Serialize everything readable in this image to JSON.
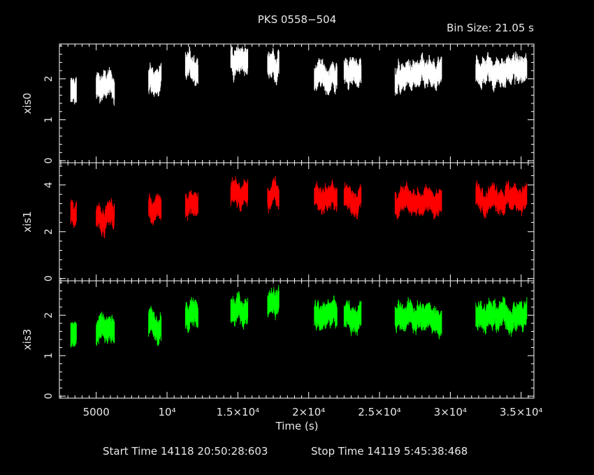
{
  "title": "PKS 0558−504",
  "bin_size": "Bin Size: 21.05 s",
  "start_time": "Start Time 14118 20:50:28:603",
  "stop_time": "Stop Time 14119  5:45:38:468",
  "colors": {
    "background": "#000000",
    "axes": "#ffffff",
    "xis0": "#ffffff",
    "xis1": "#ff0000",
    "xis3": "#00ff00"
  },
  "chart_data": {
    "type": "scatter",
    "title": "PKS 0558−504",
    "xlabel": "Time (s)",
    "xlim": [
      2400,
      35900
    ],
    "x_ticks": [
      {
        "value": 5000,
        "label": "5000"
      },
      {
        "value": 10000,
        "label": "10⁴"
      },
      {
        "value": 15000,
        "label": "1.5×10⁴"
      },
      {
        "value": 20000,
        "label": "2×10⁴"
      },
      {
        "value": 25000,
        "label": "2.5×10⁴"
      },
      {
        "value": 30000,
        "label": "3×10⁴"
      },
      {
        "value": 35000,
        "label": "3.5×10⁴"
      }
    ],
    "segments": [
      {
        "start": 3200,
        "end": 3600,
        "xis0": 1.65,
        "xis1": 2.75,
        "xis3": 1.55
      },
      {
        "start": 5000,
        "end": 6300,
        "xis0": 1.8,
        "xis1": 2.75,
        "xis3": 1.55
      },
      {
        "start": 8700,
        "end": 9600,
        "xis0": 1.95,
        "xis1": 3.0,
        "xis3": 1.75
      },
      {
        "start": 11300,
        "end": 12200,
        "xis0": 2.3,
        "xis1": 3.3,
        "xis3": 2.0
      },
      {
        "start": 14500,
        "end": 15700,
        "xis0": 2.4,
        "xis1": 3.6,
        "xis3": 2.1
      },
      {
        "start": 17100,
        "end": 17900,
        "xis0": 2.4,
        "xis1": 3.5,
        "xis3": 2.35
      },
      {
        "start": 20400,
        "end": 22000,
        "xis0": 2.05,
        "xis1": 3.5,
        "xis3": 2.0
      },
      {
        "start": 22500,
        "end": 23700,
        "xis0": 2.15,
        "xis1": 3.4,
        "xis3": 1.95
      },
      {
        "start": 26100,
        "end": 29400,
        "xis0": 2.05,
        "xis1": 3.3,
        "xis3": 1.95
      },
      {
        "start": 31800,
        "end": 35400,
        "xis0": 2.2,
        "xis1": 3.5,
        "xis3": 2.0
      }
    ],
    "panels": [
      {
        "name": "xis0",
        "ylabel": "xis0",
        "ylim": [
          -0.05,
          2.85
        ],
        "yticks": [
          0,
          1,
          2
        ],
        "noise": 0.22
      },
      {
        "name": "xis1",
        "ylabel": "xis1",
        "ylim": [
          -0.1,
          4.95
        ],
        "yticks": [
          0,
          2,
          4
        ],
        "noise": 0.35
      },
      {
        "name": "xis3",
        "ylabel": "xis3",
        "ylim": [
          -0.05,
          2.85
        ],
        "yticks": [
          0,
          1,
          2
        ],
        "noise": 0.22
      }
    ]
  }
}
